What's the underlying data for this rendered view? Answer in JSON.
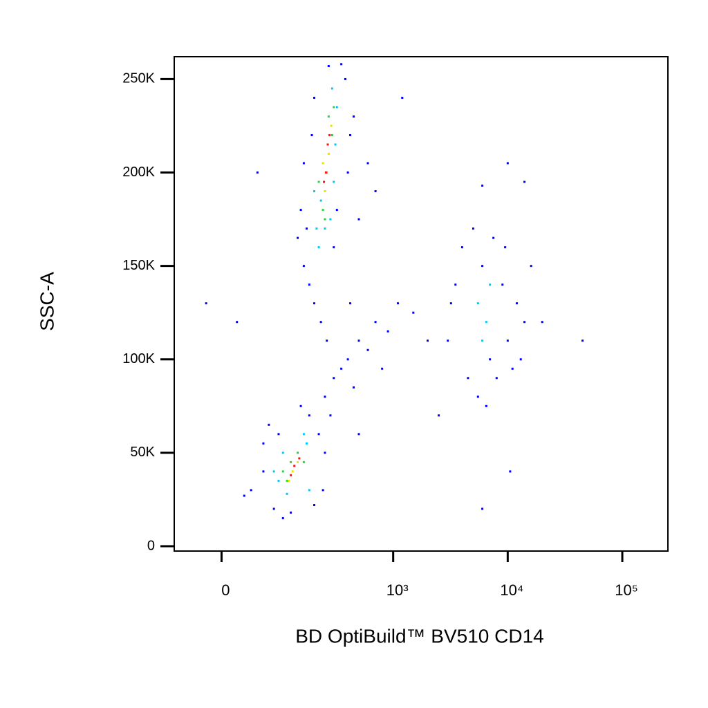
{
  "chart_data": {
    "type": "scatter",
    "x_label": "BD OptiBuild™ BV510 CD14",
    "y_label": "SSC-A",
    "xscale": "biexponential",
    "xlim": [
      -70,
      250000
    ],
    "ylim": [
      -2600,
      262000
    ],
    "xticks": [
      0,
      {
        "value": 1000,
        "label": "10³"
      },
      {
        "value": 10000,
        "label": "10⁴"
      },
      {
        "value": 100000,
        "label": "10⁵"
      }
    ],
    "yticks": [
      0,
      {
        "value": 50000,
        "label": "50K"
      },
      {
        "value": 100000,
        "label": "100K"
      },
      {
        "value": 150000,
        "label": "150K"
      },
      {
        "value": 200000,
        "label": "200K"
      },
      {
        "value": 250000,
        "label": "250K"
      }
    ],
    "series": [
      {
        "color": "#0000ff",
        "x": [
          160,
          180,
          200,
          170,
          150,
          140,
          300,
          320,
          400,
          420,
          380,
          350,
          270,
          200,
          190,
          450,
          600,
          700,
          500,
          230,
          260,
          1200,
          50,
          420,
          160,
          300,
          350,
          400,
          450,
          500,
          600,
          700,
          900,
          1500,
          2000,
          250,
          280,
          800,
          1100,
          40,
          30,
          60,
          70,
          80,
          100,
          120,
          200,
          220,
          240,
          180,
          60,
          90,
          250,
          -20,
          20,
          500,
          150,
          3000,
          3500,
          4000,
          5000,
          6000,
          7000,
          8000,
          9000,
          10000,
          12000,
          14000,
          16000,
          4500,
          5500,
          7500,
          11000,
          3200,
          6500,
          9500,
          13000,
          2500,
          20000,
          45000,
          6000,
          10500,
          10000,
          6000,
          14000
        ],
        "values": [
          150000,
          140000,
          130000,
          170000,
          180000,
          165000,
          160000,
          180000,
          200000,
          220000,
          250000,
          258000,
          257000,
          240000,
          220000,
          230000,
          205000,
          190000,
          175000,
          120000,
          110000,
          240000,
          200000,
          130000,
          205000,
          90000,
          95000,
          100000,
          85000,
          110000,
          105000,
          120000,
          115000,
          125000,
          110000,
          80000,
          70000,
          95000,
          130000,
          30000,
          27000,
          55000,
          65000,
          20000,
          15000,
          18000,
          22000,
          60000,
          30000,
          70000,
          40000,
          60000,
          50000,
          130000,
          120000,
          60000,
          75000,
          110000,
          140000,
          160000,
          170000,
          150000,
          100000,
          90000,
          140000,
          110000,
          130000,
          120000,
          150000,
          90000,
          80000,
          165000,
          95000,
          130000,
          75000,
          160000,
          100000,
          70000,
          120000,
          110000,
          20000,
          40000,
          205000,
          193000,
          195000
        ]
      },
      {
        "color": "#00c8ff",
        "x": [
          220,
          250,
          280,
          230,
          300,
          310,
          320,
          290,
          200,
          210,
          90,
          110,
          170,
          180,
          100,
          160,
          80,
          5500,
          6500,
          7000,
          6000
        ],
        "values": [
          160000,
          170000,
          175000,
          185000,
          195000,
          215000,
          235000,
          245000,
          190000,
          170000,
          35000,
          28000,
          55000,
          30000,
          50000,
          60000,
          40000,
          130000,
          120000,
          140000,
          110000
        ]
      },
      {
        "color": "#30d040",
        "x": [
          240,
          260,
          290,
          300,
          270,
          220,
          250,
          110,
          140,
          160,
          120,
          100
        ],
        "values": [
          180000,
          200000,
          220000,
          235000,
          230000,
          195000,
          175000,
          35000,
          50000,
          45000,
          45000,
          40000
        ]
      },
      {
        "color": "#f0e000",
        "x": [
          250,
          270,
          285,
          240,
          125,
          140,
          115
        ],
        "values": [
          190000,
          210000,
          225000,
          205000,
          40000,
          45000,
          35000
        ]
      },
      {
        "color": "#ff1010",
        "x": [
          255,
          265,
          245,
          275,
          130,
          145,
          120
        ],
        "values": [
          200000,
          215000,
          195000,
          220000,
          43000,
          47000,
          38000
        ]
      }
    ]
  }
}
